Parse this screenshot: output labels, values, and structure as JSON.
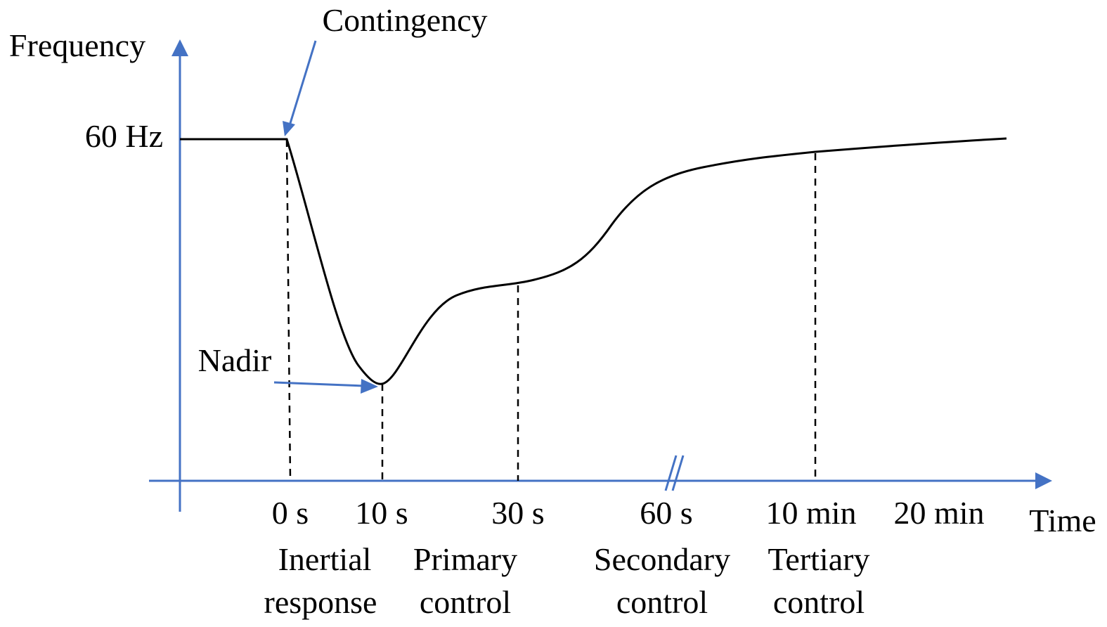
{
  "axes": {
    "y_label": "Frequency",
    "x_label": "Time",
    "y_tick": "60 Hz",
    "color": "#4472c4"
  },
  "annotations": {
    "contingency": "Contingency",
    "nadir": "Nadir"
  },
  "time_ticks": [
    "0 s",
    "10 s",
    "30 s",
    "60 s",
    "10 min",
    "20 min"
  ],
  "phases": [
    {
      "line1": "Inertial",
      "line2": "response"
    },
    {
      "line1": "Primary",
      "line2": "control"
    },
    {
      "line1": "Secondary",
      "line2": "control"
    },
    {
      "line1": "Tertiary",
      "line2": "control"
    }
  ],
  "colors": {
    "curve": "#000000",
    "axis": "#4472c4",
    "arrow": "#4472c4",
    "dashed": "#000000"
  }
}
